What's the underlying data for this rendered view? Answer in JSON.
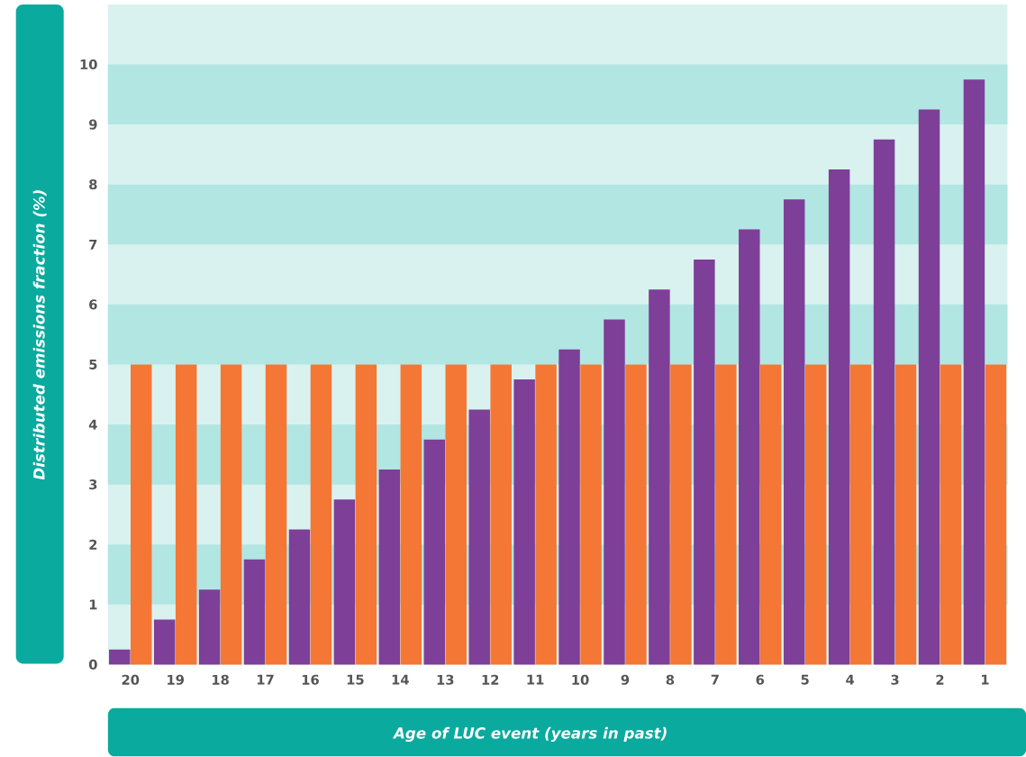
{
  "chart_data": {
    "type": "bar",
    "xlabel": "Age of LUC event (years in past)",
    "ylabel": "Distributed emissions fraction (%)",
    "categories": [
      "20",
      "19",
      "18",
      "17",
      "16",
      "15",
      "14",
      "13",
      "12",
      "11",
      "10",
      "9",
      "8",
      "7",
      "6",
      "5",
      "4",
      "3",
      "2",
      "1"
    ],
    "series": [
      {
        "color": "#7e3f98",
        "values": [
          0.25,
          0.75,
          1.25,
          1.75,
          2.25,
          2.75,
          3.25,
          3.75,
          4.25,
          4.75,
          5.25,
          5.75,
          6.25,
          6.75,
          7.25,
          7.75,
          8.25,
          8.75,
          9.25,
          9.75
        ]
      },
      {
        "color": "#f47735",
        "values": [
          5,
          5,
          5,
          5,
          5,
          5,
          5,
          5,
          5,
          5,
          5,
          5,
          5,
          5,
          5,
          5,
          5,
          5,
          5,
          5
        ]
      }
    ],
    "ylim": [
      0,
      11
    ],
    "yticks": [
      0,
      1,
      2,
      3,
      4,
      5,
      6,
      7,
      8,
      9,
      10
    ],
    "bands": [
      {
        "axis": "y",
        "from": 1,
        "to": 2,
        "color": "#b2e6e2"
      },
      {
        "axis": "y",
        "from": 3,
        "to": 4,
        "color": "#b2e6e2"
      },
      {
        "axis": "y",
        "from": 5,
        "to": 6,
        "color": "#b2e6e2"
      },
      {
        "axis": "y",
        "from": 7,
        "to": 8,
        "color": "#b2e6e2"
      },
      {
        "axis": "y",
        "from": 9,
        "to": 10,
        "color": "#b2e6e2"
      }
    ]
  }
}
